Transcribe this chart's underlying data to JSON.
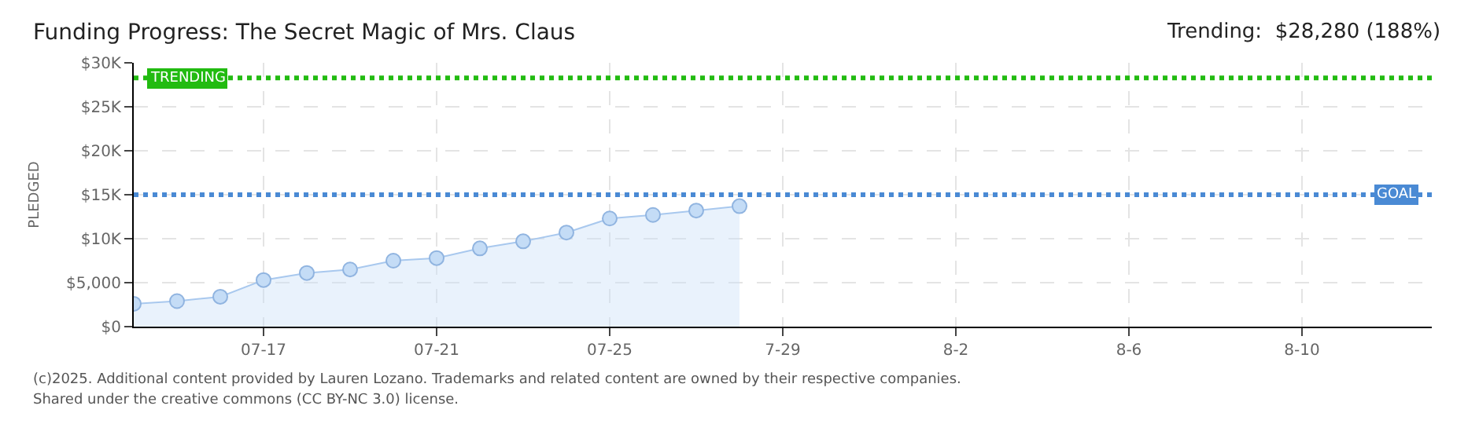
{
  "chart_data": {
    "type": "area",
    "title": "Funding Progress: The Secret Magic of Mrs. Claus",
    "subtitle": "Trending:  $28,280 (188%)",
    "ylabel": "PLEDGED",
    "x": [
      "2025-07-14",
      "2025-07-15",
      "2025-07-16",
      "2025-07-17",
      "2025-07-18",
      "2025-07-19",
      "2025-07-20",
      "2025-07-21",
      "2025-07-22",
      "2025-07-23",
      "2025-07-24",
      "2025-07-25",
      "2025-07-26",
      "2025-07-27",
      "2025-07-28"
    ],
    "series": [
      {
        "color": "#a8c8ee",
        "values": [
          2600,
          2900,
          3400,
          5300,
          6100,
          6500,
          7500,
          7800,
          8900,
          9700,
          10700,
          12300,
          12700,
          13200,
          13700
        ]
      }
    ],
    "xlim": [
      "2025-07-14",
      "2025-08-13"
    ],
    "xticks": [
      {
        "value": "2025-07-17",
        "label": "07-17"
      },
      {
        "value": "2025-07-21",
        "label": "07-21"
      },
      {
        "value": "2025-07-25",
        "label": "07-25"
      },
      {
        "value": "2025-07-29",
        "label": "7-29"
      },
      {
        "value": "2025-08-02",
        "label": "8-2"
      },
      {
        "value": "2025-08-06",
        "label": "8-6"
      },
      {
        "value": "2025-08-10",
        "label": "8-10"
      }
    ],
    "ylim": [
      0,
      30000
    ],
    "yticks": [
      {
        "value": 0,
        "label": "$0"
      },
      {
        "value": 5000,
        "label": "$5,000"
      },
      {
        "value": 10000,
        "label": "$10K"
      },
      {
        "value": 15000,
        "label": "$15K"
      },
      {
        "value": 20000,
        "label": "$20K"
      },
      {
        "value": 25000,
        "label": "$25K"
      },
      {
        "value": 30000,
        "label": "$30K"
      }
    ],
    "ref_lines": [
      {
        "axis": "y",
        "value": 28280,
        "label": "TRENDING",
        "color": "#22bb11",
        "line_style": "dotted"
      },
      {
        "axis": "y",
        "value": 15000,
        "label": "GOAL",
        "color": "#4a8ad4",
        "line_style": "dotted"
      }
    ],
    "annotations": [
      "(c)2025. Additional content provided by Lauren Lozano. Trademarks and related content are owned by their respective companies.",
      "Shared under the creative commons (CC BY-NC 3.0) license."
    ],
    "grid": true,
    "marker": "circle"
  }
}
